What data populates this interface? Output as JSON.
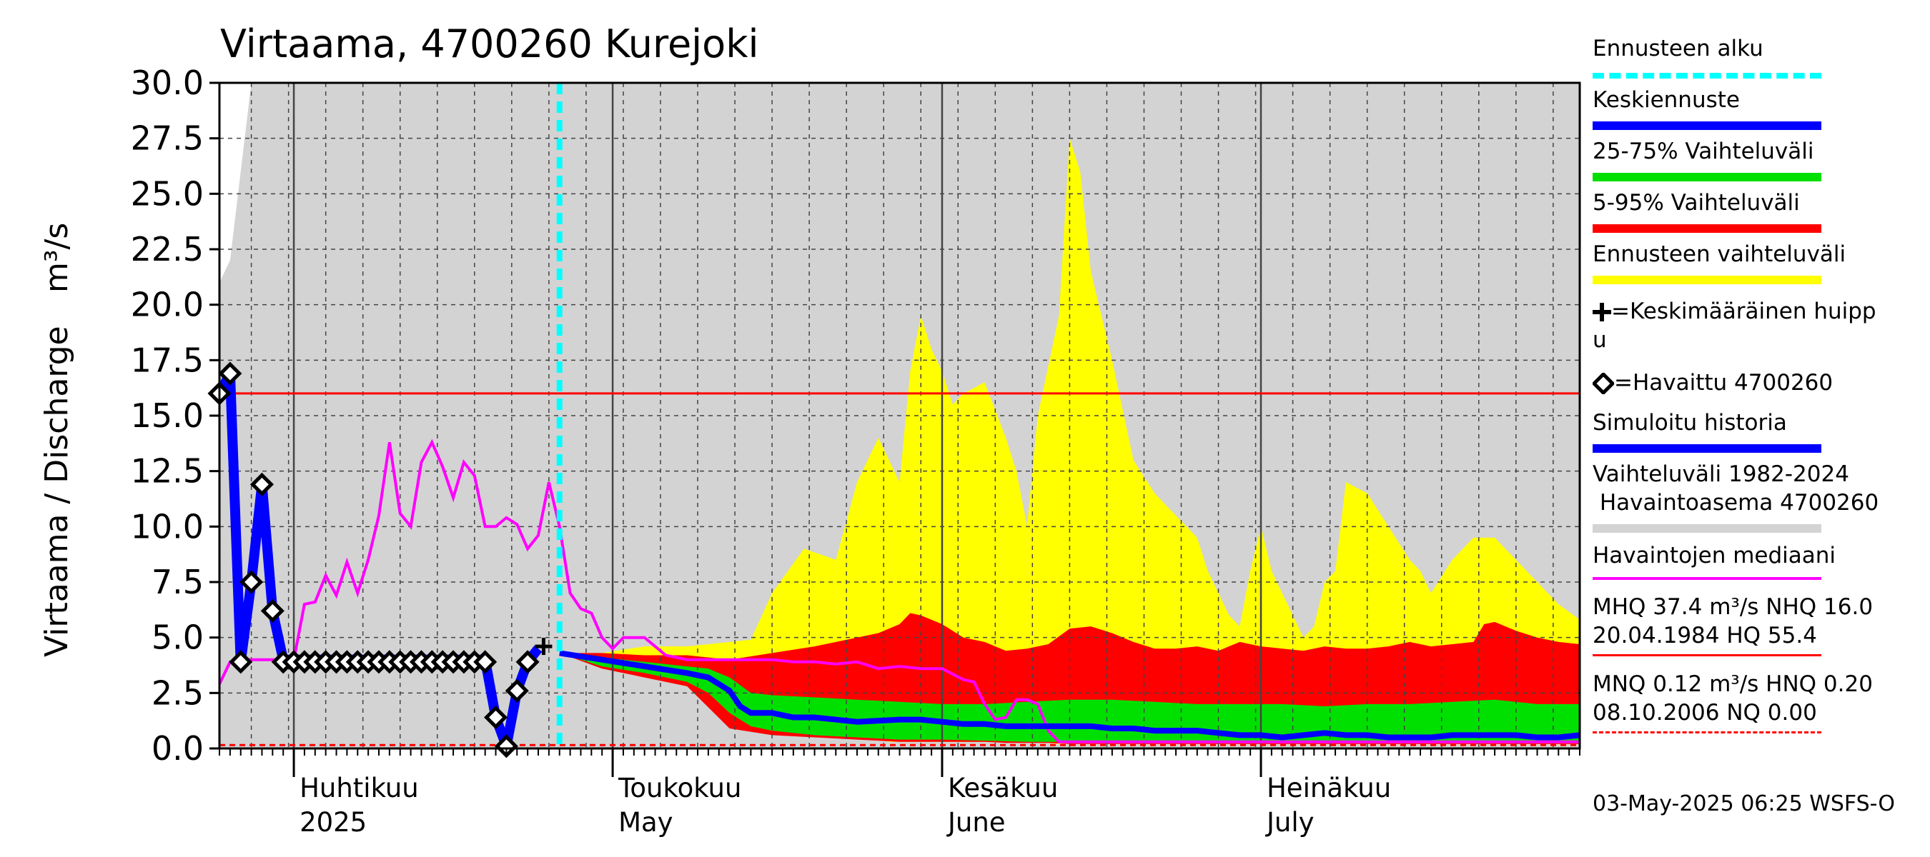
{
  "chart_data": {
    "type": "area",
    "title": "Virtaama, 4700260 Kurejoki",
    "ylabel_left": "Virtaama / Discharge",
    "ylabel_unit": "m³/s",
    "ylim": [
      0,
      30
    ],
    "yticks": [
      "0.0",
      "2.5",
      "5.0",
      "7.5",
      "10.0",
      "12.5",
      "15.0",
      "17.5",
      "20.0",
      "22.5",
      "25.0",
      "27.5",
      "30.0"
    ],
    "ytick_values": [
      0,
      2.5,
      5,
      7.5,
      10,
      12.5,
      15,
      17.5,
      20,
      22.5,
      25,
      27.5,
      30
    ],
    "x_start": "2025-03-25",
    "x_end": "2025-07-31",
    "x_days": 128,
    "month_labels": [
      {
        "top": "Huhtikuu",
        "bottom": "2025",
        "day": 7
      },
      {
        "top": "Toukokuu",
        "bottom": "May",
        "day": 37
      },
      {
        "top": "Kesäkuu",
        "bottom": "June",
        "day": 68
      },
      {
        "top": "Heinäkuu",
        "bottom": "July",
        "day": 98
      }
    ],
    "month_boundaries": [
      7,
      37,
      68,
      98
    ],
    "forecast_start_day": 32,
    "reference_lines": {
      "MHQ": 37.4,
      "NHQ": 16.0,
      "MNQ": 0.12,
      "NQ": 0.0
    },
    "history_range": {
      "days": [
        0,
        1,
        3,
        4,
        5,
        6,
        10,
        20,
        30,
        38,
        40,
        44,
        46,
        51,
        58,
        60,
        61,
        62,
        63,
        64,
        65,
        66,
        67,
        68,
        69,
        70,
        71,
        72,
        73,
        74,
        75,
        76,
        77,
        78,
        79,
        80,
        81,
        82,
        83,
        84,
        85,
        86,
        87,
        88,
        89,
        90,
        91,
        92,
        93,
        94,
        95,
        96,
        97,
        98,
        99,
        100,
        101,
        102,
        103,
        104,
        105,
        106,
        107,
        108,
        109,
        110,
        111,
        112,
        113,
        114,
        115,
        116,
        117,
        118,
        119,
        120,
        121,
        122,
        123,
        124,
        125,
        126,
        127,
        128
      ],
      "upper": [
        21,
        22,
        30,
        30,
        30,
        30,
        30,
        30,
        30,
        30,
        30,
        30,
        30,
        30,
        30,
        30,
        30,
        30,
        30,
        30,
        30,
        30,
        30,
        30,
        30,
        30,
        30,
        30,
        30,
        30,
        30,
        30,
        30,
        30,
        30,
        30,
        30,
        30,
        30,
        30,
        30,
        30,
        30,
        30,
        30,
        30,
        30,
        30,
        30,
        30,
        30,
        30,
        30,
        30,
        30,
        30,
        30,
        30,
        30,
        30,
        30,
        30,
        30,
        30,
        30,
        30,
        30,
        30,
        30,
        30,
        30,
        30,
        30,
        30,
        30,
        30,
        30,
        30,
        30,
        30,
        30,
        30,
        30,
        30
      ],
      "lower": [
        0,
        0,
        0,
        0,
        0,
        0,
        0,
        0,
        0,
        0,
        0,
        0,
        0,
        0,
        0,
        0,
        0,
        0,
        0,
        0,
        0,
        0,
        0,
        0,
        0,
        0,
        0,
        0,
        0,
        0,
        0,
        0,
        0,
        0,
        0,
        0,
        0,
        0,
        0,
        0,
        0,
        0,
        0,
        0,
        0,
        0,
        0,
        0,
        0,
        0,
        0,
        0,
        0,
        0,
        0,
        0,
        0,
        0,
        0,
        0,
        0,
        0,
        0,
        0,
        0,
        0,
        0,
        0,
        0,
        0,
        0,
        0,
        0,
        0,
        0,
        0,
        0,
        0,
        0,
        0,
        0,
        0,
        0,
        0
      ]
    },
    "series": [
      {
        "name": "Ennusteen vaihteluväli",
        "color": "#ffff00",
        "x": [
          32,
          36,
          40,
          44,
          50,
          52,
          55,
          58,
          60,
          62,
          63,
          64,
          65,
          66,
          67,
          68,
          69,
          70,
          72,
          74,
          75,
          76,
          77,
          79,
          80,
          81,
          82,
          84,
          86,
          88,
          90,
          91,
          92,
          93,
          94,
          95,
          96,
          97,
          98,
          99,
          100,
          101,
          102,
          103,
          104,
          105,
          106,
          108,
          110,
          112,
          113,
          114,
          116,
          118,
          120,
          122,
          124,
          126,
          128
        ],
        "upper": [
          4.3,
          4.3,
          4.6,
          4.6,
          4.9,
          7,
          9,
          8.5,
          12,
          14,
          13,
          12,
          17,
          19.5,
          18,
          17,
          15.5,
          16,
          16.5,
          14,
          12.5,
          10,
          15,
          19.5,
          27.5,
          26,
          21.5,
          17.5,
          13,
          11.5,
          10.5,
          10,
          9.5,
          8,
          7,
          6,
          5.5,
          8,
          10,
          8,
          7,
          6,
          5,
          5.5,
          7.5,
          8,
          12,
          11.5,
          10,
          8.5,
          8,
          7,
          8.5,
          9.5,
          9.5,
          8.5,
          7.5,
          6.5,
          5.8
        ],
        "lower": [
          4.3,
          3.8,
          3.5,
          3.0,
          2.5,
          2,
          1.5,
          1,
          0.5,
          0.4,
          0.3,
          0.3,
          0.3,
          0.3,
          0.3,
          0.3,
          0.3,
          0.3,
          0.3,
          0.3,
          0.3,
          0.3,
          0.3,
          0.2,
          0.2,
          0.2,
          0.2,
          0.2,
          0.2,
          0.2,
          0.2,
          0.2,
          0.2,
          0.2,
          0.2,
          0.2,
          0.2,
          0.2,
          0.2,
          0.2,
          0.2,
          0.2,
          0.2,
          0.2,
          0.2,
          0.2,
          0.2,
          0.2,
          0.2,
          0.2,
          0.2,
          0.2,
          0.2,
          0.2,
          0.2,
          0.2,
          0.2,
          0.2,
          0.2
        ]
      },
      {
        "name": "5-95% Vaihteluväli",
        "color": "#ff0000",
        "x": [
          32,
          36,
          40,
          44,
          48,
          52,
          56,
          60,
          62,
          64,
          65,
          66,
          68,
          70,
          72,
          74,
          76,
          78,
          80,
          82,
          84,
          86,
          88,
          90,
          92,
          94,
          96,
          98,
          100,
          102,
          104,
          106,
          108,
          110,
          112,
          114,
          116,
          118,
          119,
          120,
          122,
          124,
          126,
          128
        ],
        "upper": [
          4.3,
          4.3,
          4.2,
          4.2,
          4.0,
          4.3,
          4.6,
          5.0,
          5.2,
          5.6,
          6.1,
          6.0,
          5.6,
          5.0,
          4.8,
          4.4,
          4.5,
          4.7,
          5.4,
          5.5,
          5.2,
          4.8,
          4.5,
          4.5,
          4.6,
          4.4,
          4.8,
          4.6,
          4.5,
          4.4,
          4.6,
          4.5,
          4.5,
          4.6,
          4.8,
          4.6,
          4.7,
          4.8,
          5.6,
          5.7,
          5.3,
          5.0,
          4.8,
          4.7
        ],
        "lower": [
          4.3,
          3.6,
          3.2,
          2.8,
          0.9,
          0.6,
          0.5,
          0.4,
          0.35,
          0.3,
          0.3,
          0.3,
          0.3,
          0.3,
          0.3,
          0.25,
          0.25,
          0.25,
          0.2,
          0.2,
          0.2,
          0.2,
          0.2,
          0.2,
          0.2,
          0.2,
          0.2,
          0.2,
          0.2,
          0.2,
          0.2,
          0.2,
          0.2,
          0.2,
          0.2,
          0.2,
          0.2,
          0.2,
          0.2,
          0.2,
          0.2,
          0.2,
          0.2,
          0.2
        ]
      },
      {
        "name": "25-75% Vaihteluväli",
        "color": "#00e000",
        "x": [
          32,
          36,
          40,
          44,
          46,
          48,
          50,
          52,
          56,
          60,
          64,
          68,
          72,
          76,
          80,
          84,
          88,
          92,
          96,
          100,
          104,
          108,
          112,
          116,
          120,
          124,
          128
        ],
        "upper": [
          4.3,
          4.1,
          3.9,
          3.7,
          3.6,
          3.2,
          2.5,
          2.4,
          2.3,
          2.2,
          2.1,
          2.0,
          2.0,
          2.1,
          2.2,
          2.2,
          2.1,
          2.0,
          2.0,
          2.0,
          1.9,
          2.0,
          2.0,
          2.1,
          2.2,
          2.0,
          2.0
        ],
        "lower": [
          4.3,
          3.7,
          3.4,
          3.0,
          2.5,
          1.6,
          1.0,
          0.8,
          0.6,
          0.5,
          0.4,
          0.4,
          0.35,
          0.3,
          0.3,
          0.3,
          0.3,
          0.25,
          0.25,
          0.25,
          0.25,
          0.25,
          0.25,
          0.25,
          0.25,
          0.25,
          0.25
        ]
      },
      {
        "name": "Keskiennuste",
        "color": "#0000ff",
        "x": [
          32,
          36,
          40,
          44,
          46,
          48,
          49,
          50,
          52,
          54,
          56,
          60,
          64,
          66,
          68,
          70,
          72,
          74,
          76,
          78,
          80,
          82,
          84,
          86,
          88,
          90,
          92,
          94,
          96,
          98,
          100,
          102,
          104,
          106,
          108,
          110,
          112,
          114,
          116,
          118,
          120,
          122,
          124,
          126,
          128
        ],
        "values": [
          4.3,
          4.0,
          3.7,
          3.4,
          3.2,
          2.6,
          1.9,
          1.6,
          1.6,
          1.4,
          1.4,
          1.2,
          1.3,
          1.3,
          1.2,
          1.1,
          1.1,
          1.0,
          1.0,
          1.0,
          1.0,
          1.0,
          0.9,
          0.9,
          0.8,
          0.8,
          0.8,
          0.7,
          0.6,
          0.6,
          0.5,
          0.6,
          0.7,
          0.6,
          0.6,
          0.5,
          0.5,
          0.5,
          0.6,
          0.6,
          0.6,
          0.6,
          0.5,
          0.5,
          0.6
        ]
      },
      {
        "name": "Havaintojen mediaani",
        "color": "#ff00ff",
        "x": [
          0,
          1,
          2,
          3,
          4,
          5,
          6,
          7,
          8,
          9,
          10,
          11,
          12,
          13,
          14,
          15,
          16,
          17,
          18,
          19,
          20,
          21,
          22,
          23,
          24,
          25,
          26,
          27,
          28,
          29,
          30,
          31,
          32,
          33,
          34,
          35,
          36,
          37,
          38,
          40,
          42,
          44,
          46,
          48,
          50,
          52,
          54,
          56,
          58,
          60,
          62,
          64,
          66,
          68,
          70,
          71,
          72,
          73,
          74,
          75,
          76,
          77,
          78,
          79,
          80,
          82,
          84,
          86,
          88,
          90,
          92,
          94,
          96,
          98,
          100,
          102,
          104,
          106,
          108,
          110,
          112,
          114,
          116,
          118,
          120,
          122,
          124,
          126,
          128
        ],
        "values": [
          2.9,
          3.9,
          4.0,
          4.0,
          4.0,
          4.0,
          4.0,
          4.0,
          6.5,
          6.6,
          7.8,
          6.9,
          8.4,
          7.0,
          8.5,
          10.5,
          13.8,
          10.6,
          10.0,
          12.9,
          13.8,
          12.7,
          11.3,
          12.9,
          12.3,
          10.0,
          10.0,
          10.4,
          10.1,
          9.0,
          9.6,
          12.0,
          10.0,
          7.0,
          6.3,
          6.1,
          5.0,
          4.5,
          5.0,
          5.0,
          4.2,
          4.0,
          4.0,
          4.0,
          4.0,
          4.0,
          3.9,
          3.9,
          3.8,
          3.9,
          3.6,
          3.7,
          3.6,
          3.6,
          3.1,
          3.0,
          2.0,
          1.3,
          1.4,
          2.2,
          2.2,
          2.0,
          0.8,
          0.3,
          0.3,
          0.3,
          0.3,
          0.3,
          0.3,
          0.3,
          0.3,
          0.3,
          0.3,
          0.3,
          0.3,
          0.3,
          0.3,
          0.3,
          0.3,
          0.3,
          0.3,
          0.3,
          0.3,
          0.3,
          0.3,
          0.3,
          0.3,
          0.3,
          0.3
        ]
      },
      {
        "name": "Simuloitu historia",
        "color": "#0000ff",
        "x": [
          0,
          1,
          2,
          3,
          4,
          5,
          6,
          7,
          8,
          9,
          10,
          11,
          12,
          13,
          14,
          15,
          16,
          17,
          18,
          19,
          20,
          21,
          22,
          23,
          24,
          25,
          26,
          27,
          28,
          29,
          30
        ],
        "values": [
          16.0,
          16.9,
          3.9,
          7.5,
          11.9,
          6.2,
          4.0,
          4.0,
          4.0,
          4.0,
          4.0,
          4.0,
          4.0,
          4.0,
          4.0,
          4.0,
          4.0,
          4.0,
          4.0,
          4.0,
          4.0,
          4.0,
          4.0,
          4.0,
          4.0,
          4.0,
          1.4,
          0.1,
          2.6,
          3.9,
          4.5
        ]
      },
      {
        "name": "Havaittu 4700260",
        "color": "#000000",
        "x": [
          0,
          1,
          2,
          3,
          4,
          5,
          6,
          7,
          8,
          9,
          10,
          11,
          12,
          13,
          14,
          15,
          16,
          17,
          18,
          19,
          20,
          21,
          22,
          23,
          24,
          25,
          26,
          27,
          28,
          29
        ],
        "values": [
          16.0,
          16.9,
          3.9,
          7.5,
          11.9,
          6.2,
          3.9,
          3.9,
          3.9,
          3.9,
          3.9,
          3.9,
          3.9,
          3.9,
          3.9,
          3.9,
          3.9,
          3.9,
          3.9,
          3.9,
          3.9,
          3.9,
          3.9,
          3.9,
          3.9,
          3.9,
          1.4,
          0.1,
          2.6,
          3.9
        ]
      },
      {
        "name": "Keskimääräinen huippu",
        "color": "#000000",
        "x": [
          30.5
        ],
        "values": [
          4.6
        ]
      }
    ]
  },
  "legend": {
    "forecast_start": "Ennusteen alku",
    "mean_forecast": "Keskiennuste",
    "range_25_75": "25-75% Vaihteluväli",
    "range_5_95": "5-95% Vaihteluväli",
    "forecast_range": "Ennusteen vaihteluväli",
    "mean_peak": "=Keskimääräinen huipp",
    "mean_peak_cont": "u",
    "observed": "=Havaittu 4700260",
    "simulated": "Simuloitu historia",
    "hist_range_1": "Vaihteluväli 1982-2024",
    "hist_range_2": " Havaintoasema 4700260",
    "median": "Havaintojen mediaani",
    "mhq_1": "MHQ 37.4 m³/s NHQ 16.0",
    "mhq_2": "20.04.1984 HQ 55.4",
    "mnq_1": "MNQ 0.12 m³/s HNQ 0.20",
    "mnq_2": "08.10.2006 NQ 0.00"
  },
  "colors": {
    "forecast_start": "#00ffff",
    "mean_forecast": "#0000ff",
    "range_25_75": "#00e000",
    "range_5_95": "#ff0000",
    "forecast_range": "#ffff00",
    "hist_range": "#d3d3d3",
    "median": "#ff00ff",
    "nhq_line": "#ff0000",
    "nq_line": "#ff0000"
  },
  "timestamp": "03-May-2025 06:25 WSFS-O"
}
